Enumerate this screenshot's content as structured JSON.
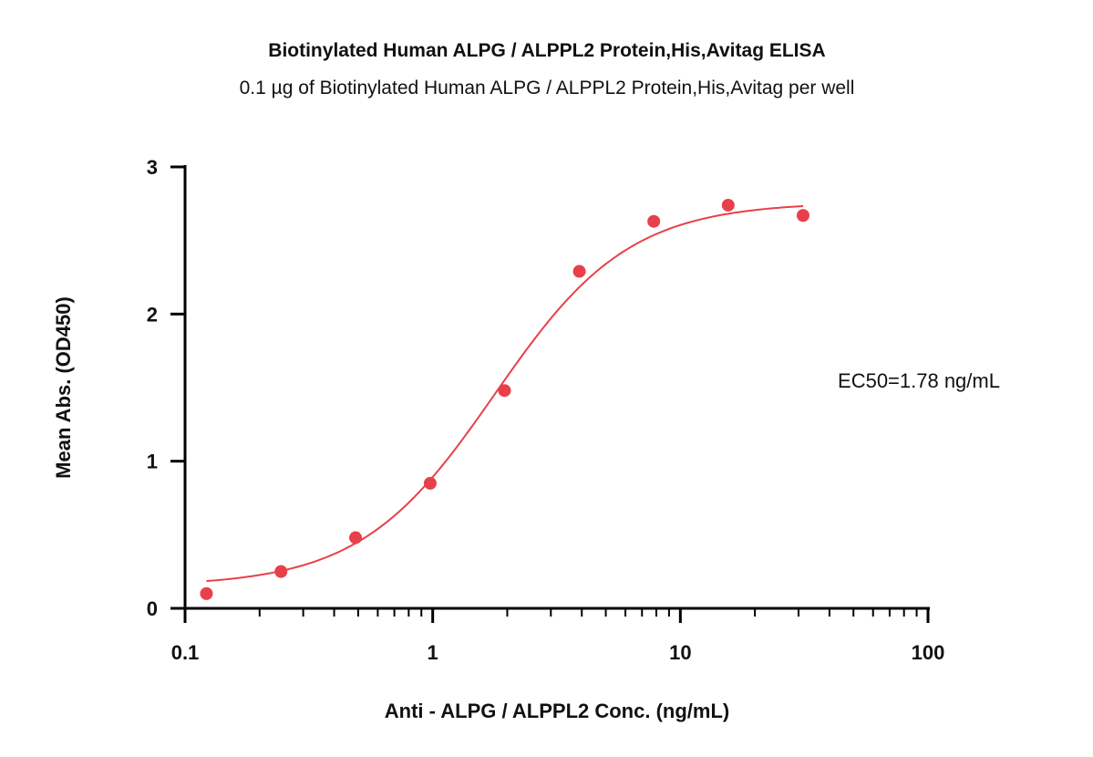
{
  "colors": {
    "series": "#e8404a",
    "axis": "#000000",
    "text": "#111111"
  },
  "chart_data": {
    "type": "scatter",
    "title": "Biotinylated Human ALPG / ALPPL2 Protein,His,Avitag ELISA",
    "subtitle": "0.1 µg of Biotinylated Human ALPG / ALPPL2 Protein,His,Avitag per well",
    "xlabel": "Anti - ALPG / ALPPL2 Conc. (ng/mL)",
    "ylabel": "Mean Abs. (OD450)",
    "x_scale": "log",
    "xlim": [
      0.1,
      100
    ],
    "ylim": [
      0,
      3
    ],
    "x_ticks": [
      {
        "value": 0.1,
        "label": "0.1"
      },
      {
        "value": 1,
        "label": "1"
      },
      {
        "value": 10,
        "label": "10"
      },
      {
        "value": 100,
        "label": "100"
      }
    ],
    "y_ticks": [
      {
        "value": 0,
        "label": "0"
      },
      {
        "value": 1,
        "label": "1"
      },
      {
        "value": 2,
        "label": "2"
      },
      {
        "value": 3,
        "label": "3"
      }
    ],
    "grid": false,
    "legend": "none",
    "series": [
      {
        "x": [
          0.122,
          0.244,
          0.488,
          0.977,
          1.95,
          3.91,
          7.81,
          15.6,
          31.3
        ],
        "y": [
          0.1,
          0.25,
          0.48,
          0.85,
          1.48,
          2.29,
          2.63,
          2.74,
          2.67
        ]
      }
    ],
    "fit": {
      "type": "4PL",
      "bottom": 0.15,
      "top": 2.76,
      "ec50": 1.78,
      "hill": 1.6,
      "x_range": [
        0.122,
        31.3
      ]
    },
    "annotations": [
      "EC50=1.78 ng/mL"
    ]
  }
}
